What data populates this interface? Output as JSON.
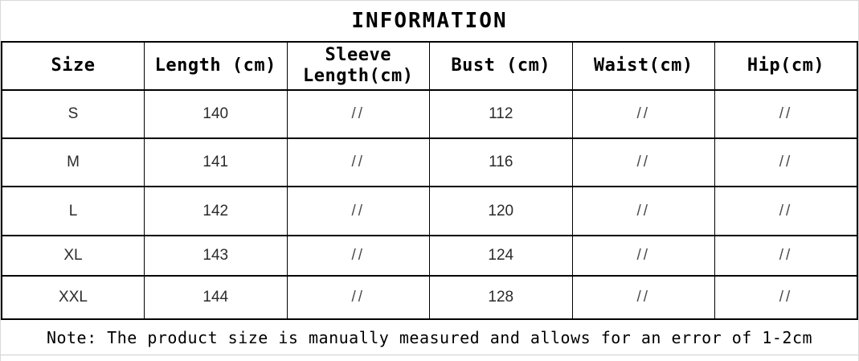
{
  "title": "INFORMATION",
  "table": {
    "columns": [
      "Size",
      "Length (cm)",
      "Sleeve Length(cm)",
      "Bust (cm)",
      "Waist(cm)",
      "Hip(cm)"
    ],
    "rows": [
      [
        "S",
        "140",
        "//",
        "112",
        "//",
        "//"
      ],
      [
        "M",
        "141",
        "//",
        "116",
        "//",
        "//"
      ],
      [
        "L",
        "142",
        "//",
        "120",
        "//",
        "//"
      ],
      [
        "XL",
        "143",
        "//",
        "124",
        "//",
        "//"
      ],
      [
        "XXL",
        "144",
        "//",
        "128",
        "//",
        "//"
      ]
    ]
  },
  "note": "Note: The product size is manually measured and allows for an error of 1-2cm",
  "colors": {
    "table_border": "#000000",
    "outer_border": "#d9d9d9",
    "title_text": "#000000",
    "header_text": "#000000",
    "data_text": "#2b2b2b",
    "placeholder_slash_text": "#4a4a4a"
  }
}
